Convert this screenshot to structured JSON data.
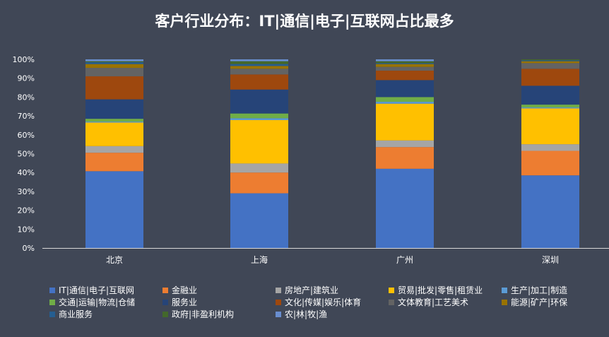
{
  "chart_data": {
    "type": "bar",
    "stacked": true,
    "title": "客户行业分布：IT|通信|电子|互联网占比最多",
    "categories": [
      "北京",
      "上海",
      "广州",
      "深圳"
    ],
    "ylim": [
      0,
      100
    ],
    "yticks": [
      "0%",
      "10%",
      "20%",
      "30%",
      "40%",
      "50%",
      "60%",
      "70%",
      "80%",
      "90%",
      "100%"
    ],
    "grid": false,
    "legend_position": "bottom",
    "series": [
      {
        "name": "IT|通信|电子|互联网",
        "color": "#4472C4",
        "values": [
          40.7,
          29.0,
          42.0,
          38.5
        ]
      },
      {
        "name": "金融业",
        "color": "#ED7D31",
        "values": [
          9.8,
          11.0,
          11.5,
          13.0
        ]
      },
      {
        "name": "房地产|建筑业",
        "color": "#A5A5A5",
        "values": [
          3.5,
          4.8,
          3.5,
          3.5
        ]
      },
      {
        "name": "贸易|批发|零售|租赁业",
        "color": "#FFC000",
        "values": [
          12.5,
          23.0,
          19.5,
          19.0
        ]
      },
      {
        "name": "生产|加工|制造",
        "color": "#5B9BD5",
        "values": [
          0.5,
          1.0,
          1.0,
          0.5
        ]
      },
      {
        "name": "交通|运输|物流|仓储",
        "color": "#70AD47",
        "values": [
          1.5,
          2.5,
          2.5,
          1.5
        ]
      },
      {
        "name": "服务业",
        "color": "#264478",
        "values": [
          10.3,
          12.7,
          9.0,
          10.0
        ]
      },
      {
        "name": "文化|传媒|娱乐|体育",
        "color": "#9E480E",
        "values": [
          12.2,
          8.0,
          5.0,
          9.0
        ]
      },
      {
        "name": "文体教育|工艺美术",
        "color": "#636363",
        "values": [
          4.5,
          3.0,
          2.0,
          3.0
        ]
      },
      {
        "name": "能源|矿产|环保",
        "color": "#997300",
        "values": [
          2.0,
          1.5,
          1.5,
          1.0
        ]
      },
      {
        "name": "商业服务",
        "color": "#255E91",
        "values": [
          1.0,
          1.0,
          0.5,
          0.5
        ]
      },
      {
        "name": "政府|非盈利机构",
        "color": "#43682B",
        "values": [
          0.5,
          1.5,
          1.0,
          0.5
        ]
      },
      {
        "name": "农|林|牧|渔",
        "color": "#698ED0",
        "values": [
          1.0,
          1.0,
          1.0,
          0.0
        ]
      }
    ]
  }
}
